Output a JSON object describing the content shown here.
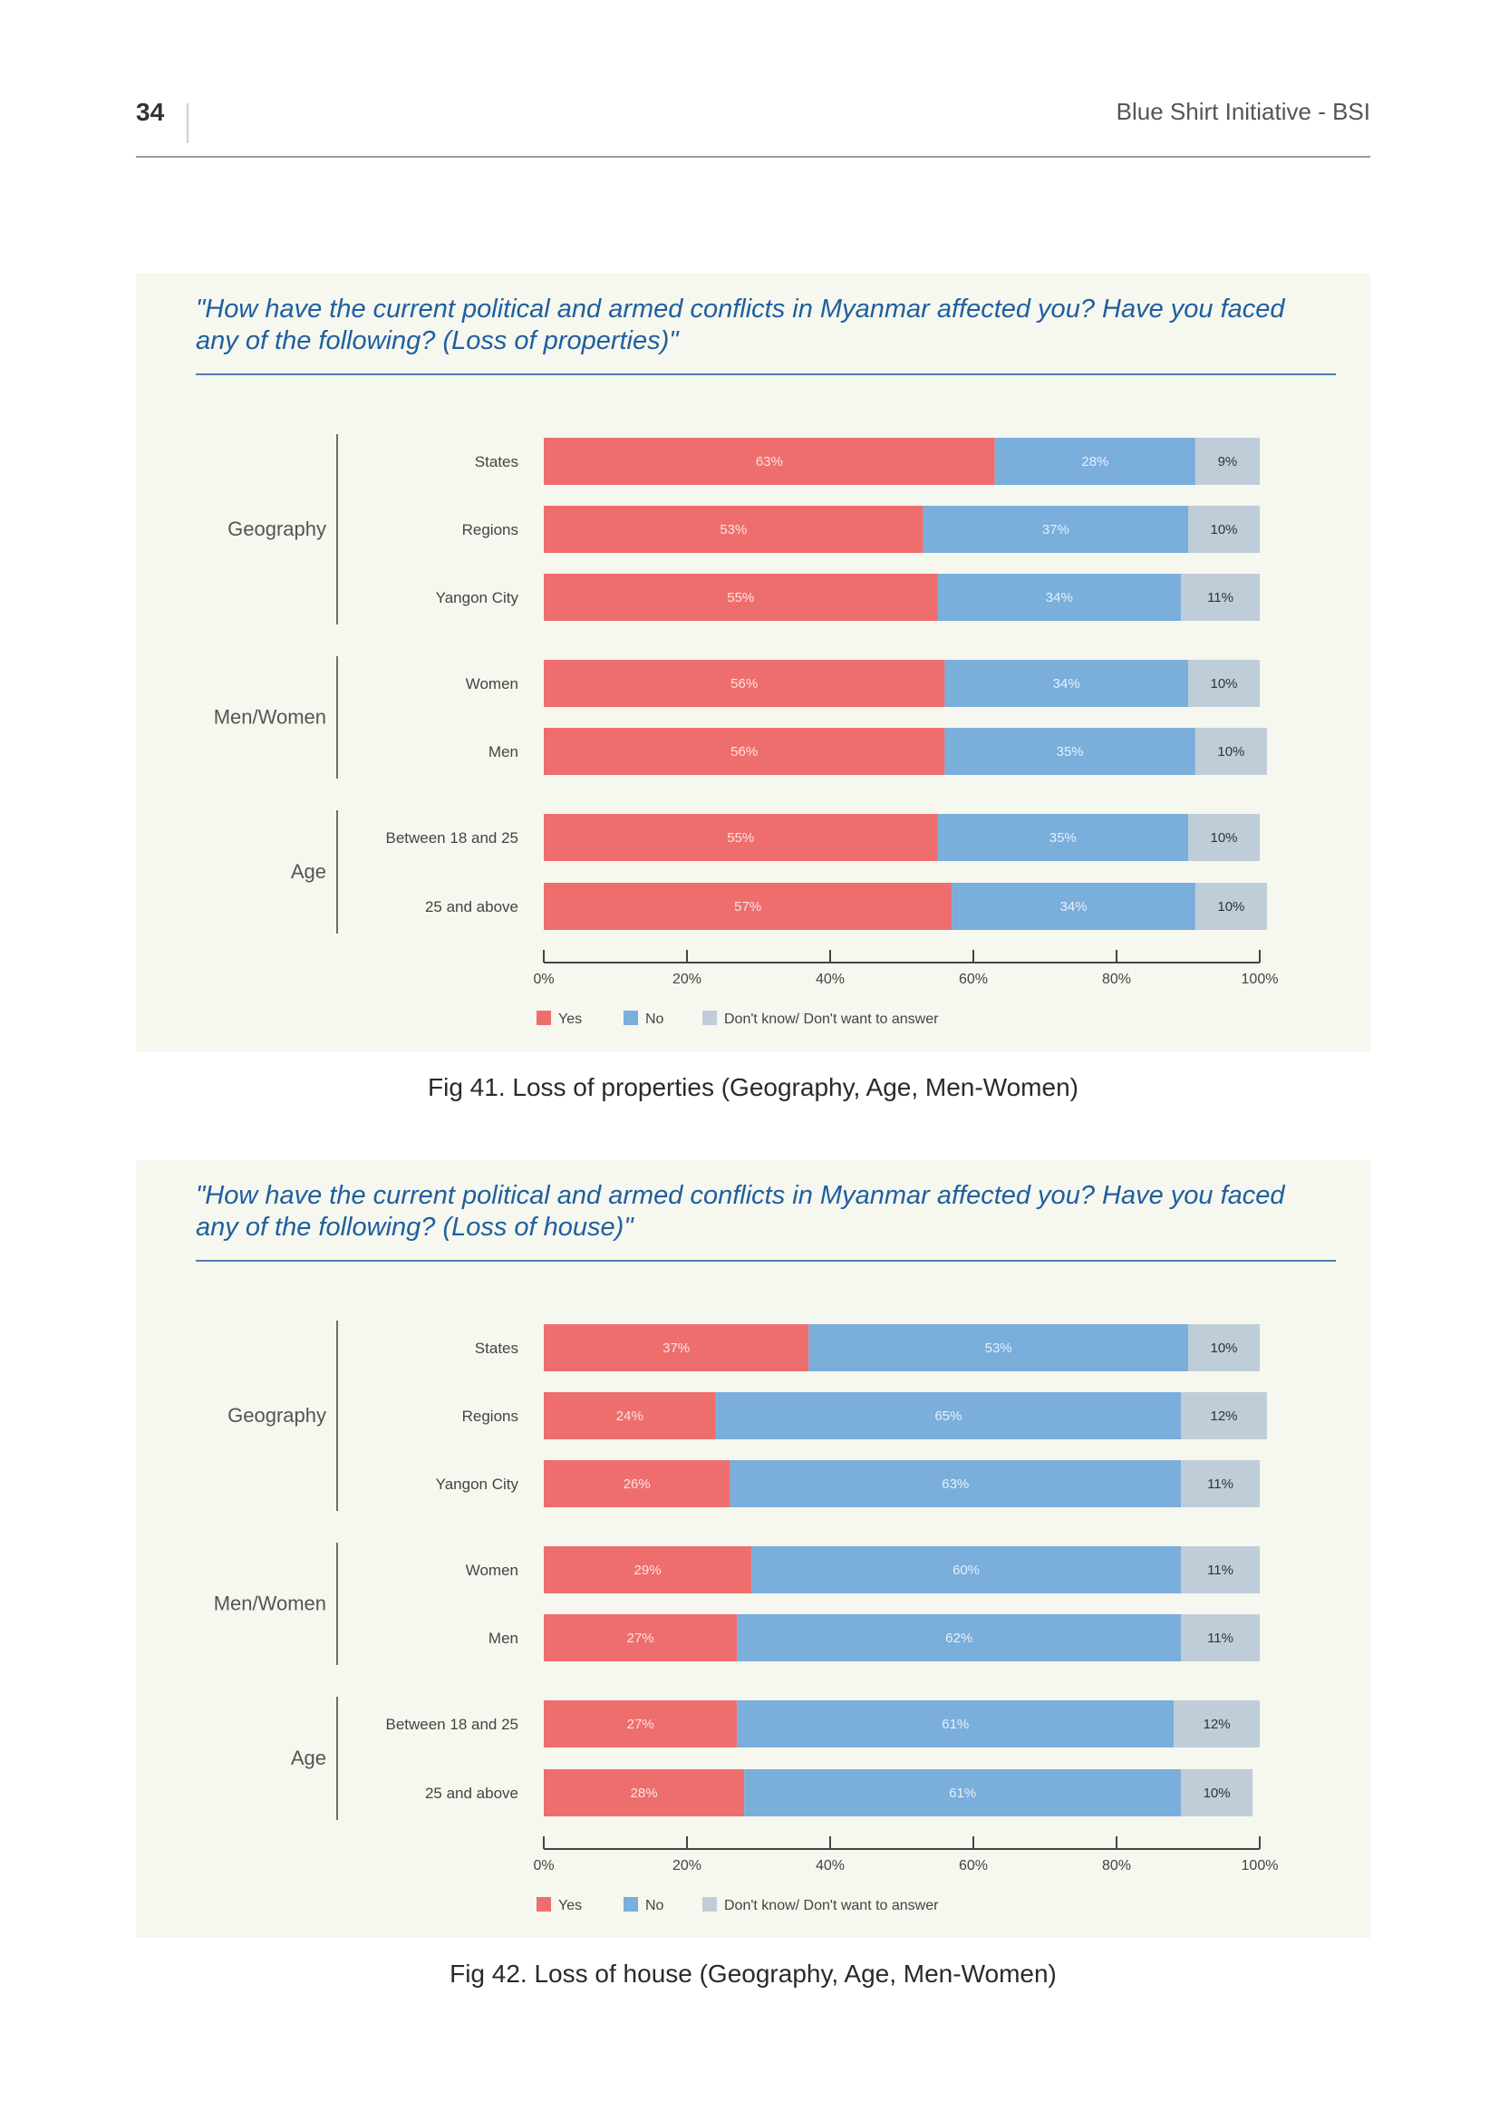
{
  "page": {
    "number": "34",
    "running_header": "Blue Shirt Initiative - BSI"
  },
  "colors": {
    "yes": "#ee6e6e",
    "no": "#7aaedb",
    "dont_know": "#bfcdd9",
    "panel_bg": "#f6f7ee",
    "question_text": "#1f5fa0"
  },
  "figures": [
    {
      "question": "\"How have the current political and armed conflicts in Myanmar affected you? Have you faced any of the following? (Loss of properties)\"",
      "caption": "Fig 41. Loss of properties (Geography, Age, Men-Women)"
    },
    {
      "question": "\"How have the current political and armed conflicts in Myanmar affected you? Have you faced any of the following? (Loss of house)\"",
      "caption": "Fig 42. Loss of house (Geography, Age, Men-Women)"
    }
  ],
  "chart_data": [
    {
      "type": "bar",
      "orientation": "horizontal",
      "stacked": true,
      "groups": [
        {
          "name": "Geography",
          "categories": [
            "States",
            "Regions",
            "Yangon City"
          ]
        },
        {
          "name": "Men/Women",
          "categories": [
            "Women",
            "Men"
          ]
        },
        {
          "name": "Age",
          "categories": [
            "Between 18 and 25",
            "25 and above"
          ]
        }
      ],
      "categories": [
        "States",
        "Regions",
        "Yangon City",
        "Women",
        "Men",
        "Between 18 and 25",
        "25 and above"
      ],
      "series": [
        {
          "name": "Yes",
          "values": [
            63,
            53,
            55,
            56,
            56,
            55,
            57
          ],
          "labels": [
            "63%",
            "53%",
            "55%",
            "56%",
            "56%",
            "55%",
            "57%"
          ]
        },
        {
          "name": "No",
          "values": [
            28,
            37,
            34,
            34,
            35,
            35,
            34
          ],
          "labels": [
            "28%",
            "37%",
            "34%",
            "34%",
            "35%",
            "35%",
            "34%"
          ]
        },
        {
          "name": "Don't know/ Don't want to answer",
          "values": [
            9,
            10,
            11,
            10,
            10,
            10,
            10
          ],
          "labels": [
            "9%",
            "10%",
            "11%",
            "10%",
            "10%",
            "10%",
            "10%"
          ]
        }
      ],
      "xlim": [
        0,
        100
      ],
      "xticks": [
        "0%",
        "20%",
        "40%",
        "60%",
        "80%",
        "100%"
      ],
      "legend": "bottom-left",
      "grid": false
    },
    {
      "type": "bar",
      "orientation": "horizontal",
      "stacked": true,
      "groups": [
        {
          "name": "Geography",
          "categories": [
            "States",
            "Regions",
            "Yangon City"
          ]
        },
        {
          "name": "Men/Women",
          "categories": [
            "Women",
            "Men"
          ]
        },
        {
          "name": "Age",
          "categories": [
            "Between 18 and 25",
            "25 and above"
          ]
        }
      ],
      "categories": [
        "States",
        "Regions",
        "Yangon City",
        "Women",
        "Men",
        "Between 18 and 25",
        "25 and above"
      ],
      "series": [
        {
          "name": "Yes",
          "values": [
            37,
            24,
            26,
            29,
            27,
            27,
            28
          ],
          "labels": [
            "37%",
            "24%",
            "26%",
            "29%",
            "27%",
            "27%",
            "28%"
          ]
        },
        {
          "name": "No",
          "values": [
            53,
            65,
            63,
            60,
            62,
            61,
            61
          ],
          "labels": [
            "53%",
            "65%",
            "63%",
            "60%",
            "62%",
            "61%",
            "61%"
          ]
        },
        {
          "name": "Don't know/ Don't want to answer",
          "values": [
            10,
            12,
            11,
            11,
            11,
            12,
            10
          ],
          "labels": [
            "10%",
            "12%",
            "11%",
            "11%",
            "11%",
            "12%",
            "10%"
          ]
        }
      ],
      "xlim": [
        0,
        100
      ],
      "xticks": [
        "0%",
        "20%",
        "40%",
        "60%",
        "80%",
        "100%"
      ],
      "legend": "bottom-left",
      "grid": false
    }
  ]
}
